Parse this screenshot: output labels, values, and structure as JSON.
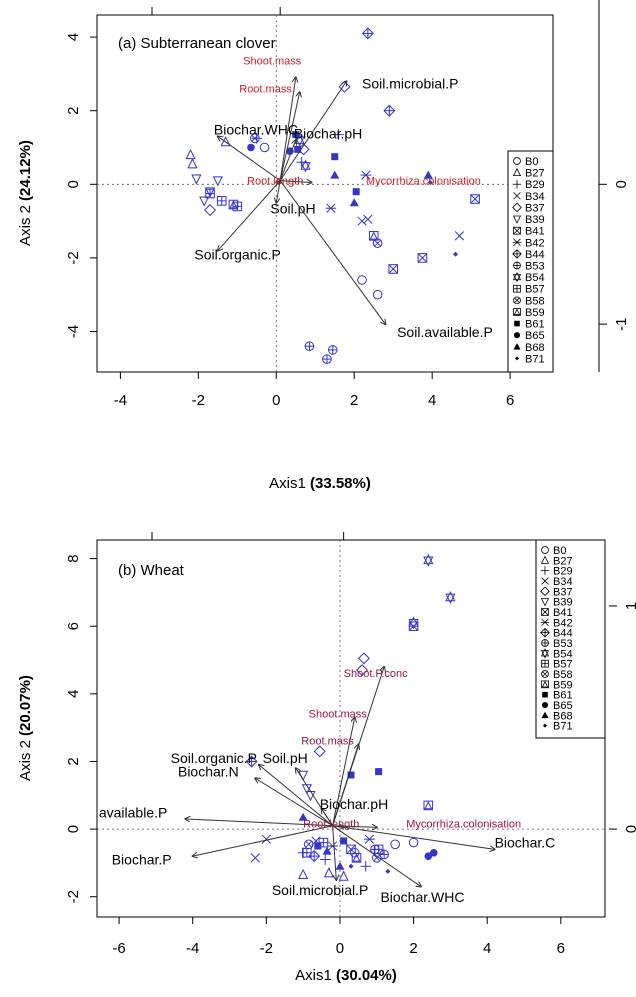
{
  "chart_data": [
    {
      "type": "scatter",
      "title": "(a) Subterranean clover",
      "xlabel": "Axis1",
      "xlabel_pct": "(33.58%)",
      "ylabel": "Axis 2",
      "ylabel_pct": "(24.12%)",
      "xlim": [
        -4.6,
        7.1
      ],
      "ylim": [
        -5.1,
        4.6
      ],
      "xticks": [
        "-4",
        "-2",
        "0",
        "2",
        "4",
        "6"
      ],
      "yticks": [
        "-4",
        "-2",
        "0",
        "2",
        "4"
      ],
      "right_ticks": [
        "0",
        "-1"
      ],
      "legend_position": "right",
      "legend": [
        "B0",
        "B27",
        "B29",
        "B34",
        "B37",
        "B39",
        "B41",
        "B42",
        "B44",
        "B53",
        "B54",
        "B57",
        "B58",
        "B59",
        "B61",
        "B65",
        "B68",
        "B71"
      ],
      "colors": {
        "points": "#3535c8",
        "vector": "#333333",
        "red_label": "#d6202a"
      },
      "origin": [
        0.1,
        0.1
      ],
      "vectors": [
        {
          "label": "Soil.microbial.P",
          "x": 1.8,
          "y": 2.8,
          "color": "black",
          "lx": 2.2,
          "ly": 2.6
        },
        {
          "label": "Shoot.mass",
          "x": 0.5,
          "y": 2.9,
          "color": "red",
          "lx": -0.85,
          "ly": 3.25
        },
        {
          "label": "Root.mass",
          "x": 0.6,
          "y": 2.5,
          "color": "red",
          "lx": -0.95,
          "ly": 2.5
        },
        {
          "label": "Biochar.WHC",
          "x": -1.5,
          "y": 1.3,
          "color": "black",
          "lx": -1.6,
          "ly": 1.35
        },
        {
          "label": "Biochar.pH",
          "x": 0.5,
          "y": 1.2,
          "color": "black",
          "lx": 0.45,
          "ly": 1.25
        },
        {
          "label": "Root.length",
          "x": 0.0,
          "y": 0.05,
          "color": "red",
          "lx": -0.75,
          "ly": 0.0
        },
        {
          "label": "Mycorrhiza.colonisation",
          "x": 0.9,
          "y": 0.05,
          "color": "red",
          "lx": 2.3,
          "ly": 0.0
        },
        {
          "label": "Soil.pH",
          "x": 0.0,
          "y": -0.5,
          "color": "black",
          "lx": -0.15,
          "ly": -0.8
        },
        {
          "label": "Soil.organic.P",
          "x": -1.5,
          "y": -1.8,
          "color": "black",
          "lx": -2.1,
          "ly": -2.05
        },
        {
          "label": "Soil.available.P",
          "x": 2.8,
          "y": -3.8,
          "color": "black",
          "lx": 3.1,
          "ly": -4.15
        }
      ],
      "points": [
        {
          "g": "B0",
          "x": 2.2,
          "y": -2.6
        },
        {
          "g": "B0",
          "x": 2.6,
          "y": -3.0
        },
        {
          "g": "B0",
          "x": -0.3,
          "y": 1.0
        },
        {
          "g": "B27",
          "x": -2.2,
          "y": 0.8
        },
        {
          "g": "B27",
          "x": -2.15,
          "y": 0.55
        },
        {
          "g": "B27",
          "x": -1.3,
          "y": 1.15
        },
        {
          "g": "B29",
          "x": 1.6,
          "y": 1.35
        },
        {
          "g": "B29",
          "x": -0.5,
          "y": 1.25
        },
        {
          "g": "B29",
          "x": 0.65,
          "y": 0.6
        },
        {
          "g": "B34",
          "x": 2.2,
          "y": -1.0
        },
        {
          "g": "B34",
          "x": 2.35,
          "y": -0.95
        },
        {
          "g": "B34",
          "x": 4.7,
          "y": -1.4
        },
        {
          "g": "B37",
          "x": 1.75,
          "y": 2.65
        },
        {
          "g": "B37",
          "x": -1.7,
          "y": -0.7
        },
        {
          "g": "B37",
          "x": 0.7,
          "y": 0.95
        },
        {
          "g": "B39",
          "x": -2.05,
          "y": 0.15
        },
        {
          "g": "B39",
          "x": -1.5,
          "y": 0.1
        },
        {
          "g": "B39",
          "x": -1.7,
          "y": -0.2
        },
        {
          "g": "B39",
          "x": -1.85,
          "y": -0.45
        },
        {
          "g": "B41",
          "x": 5.1,
          "y": -0.4
        },
        {
          "g": "B41",
          "x": 3.0,
          "y": -2.3
        },
        {
          "g": "B41",
          "x": 3.75,
          "y": -2.0
        },
        {
          "g": "B42",
          "x": 2.3,
          "y": 0.25
        },
        {
          "g": "B42",
          "x": 1.4,
          "y": -0.65
        },
        {
          "g": "B44",
          "x": 2.35,
          "y": 4.1
        },
        {
          "g": "B44",
          "x": 2.9,
          "y": 2.0
        },
        {
          "g": "B53",
          "x": 0.85,
          "y": -4.4
        },
        {
          "g": "B53",
          "x": 1.45,
          "y": -4.5
        },
        {
          "g": "B53",
          "x": 1.3,
          "y": -4.75
        },
        {
          "g": "B54",
          "x": 0.6,
          "y": 1.2
        },
        {
          "g": "B54",
          "x": 0.75,
          "y": 0.5
        },
        {
          "g": "B57",
          "x": -1.4,
          "y": -0.45
        },
        {
          "g": "B57",
          "x": -1.0,
          "y": -0.6
        },
        {
          "g": "B57",
          "x": -1.7,
          "y": -0.25
        },
        {
          "g": "B58",
          "x": 2.6,
          "y": -1.6
        },
        {
          "g": "B58",
          "x": -0.55,
          "y": 1.25
        },
        {
          "g": "B59",
          "x": 2.5,
          "y": -1.4
        },
        {
          "g": "B59",
          "x": -1.1,
          "y": -0.55
        },
        {
          "g": "B61",
          "x": 1.5,
          "y": 0.75
        },
        {
          "g": "B61",
          "x": 0.5,
          "y": 1.35
        },
        {
          "g": "B61",
          "x": 2.05,
          "y": -0.2
        },
        {
          "g": "B61",
          "x": 0.55,
          "y": 0.95
        },
        {
          "g": "B65",
          "x": -0.65,
          "y": 1.0
        },
        {
          "g": "B65",
          "x": 0.35,
          "y": 0.9
        },
        {
          "g": "B68",
          "x": 1.5,
          "y": 0.25
        },
        {
          "g": "B68",
          "x": 2.0,
          "y": -0.5
        },
        {
          "g": "B68",
          "x": 3.9,
          "y": 0.25
        },
        {
          "g": "B71",
          "x": 3.95,
          "y": 0.05
        },
        {
          "g": "B71",
          "x": 4.6,
          "y": -1.9
        }
      ]
    },
    {
      "type": "scatter",
      "title": "(b) Wheat",
      "xlabel": "Axis1",
      "xlabel_pct": "(30.04%)",
      "ylabel": "Axis 2",
      "ylabel_pct": "(20.07%)",
      "xlim": [
        -6.6,
        7.2
      ],
      "ylim": [
        -2.6,
        8.55
      ],
      "xticks": [
        "-6",
        "-4",
        "-2",
        "0",
        "2",
        "4",
        "6"
      ],
      "yticks": [
        "-2",
        "0",
        "2",
        "4",
        "6",
        "8"
      ],
      "right_ticks": [
        "1",
        "0"
      ],
      "legend_position": "top-right",
      "legend": [
        "B0",
        "B27",
        "B29",
        "B34",
        "B37",
        "B39",
        "B41",
        "B42",
        "B44",
        "B53",
        "B54",
        "B57",
        "B58",
        "B59",
        "B61",
        "B65",
        "B68",
        "B71"
      ],
      "colors": {
        "points": "#3535c8",
        "vector": "#333333",
        "red_label": "#9b1446"
      },
      "origin": [
        -0.2,
        0.1
      ],
      "vectors": [
        {
          "label": "Shoot.P.conc",
          "x": 1.2,
          "y": 4.8,
          "color": "red",
          "lx": 0.1,
          "ly": 4.5
        },
        {
          "label": "Shoot.mass",
          "x": 0.4,
          "y": 3.3,
          "color": "red",
          "lx": -0.85,
          "ly": 3.3
        },
        {
          "label": "Root.mass",
          "x": 0.5,
          "y": 2.5,
          "color": "red",
          "lx": -1.05,
          "ly": 2.5
        },
        {
          "label": "Soil.organic.P",
          "x": -2.2,
          "y": 1.9,
          "color": "black",
          "lx": -4.6,
          "ly": 1.95
        },
        {
          "label": "Soil.pH",
          "x": -1.2,
          "y": 1.8,
          "color": "black",
          "lx": -2.1,
          "ly": 1.95
        },
        {
          "label": "Biochar.N",
          "x": -2.3,
          "y": 1.5,
          "color": "black",
          "lx": -4.4,
          "ly": 1.55
        },
        {
          "label": "Biochar.pH",
          "x": -0.5,
          "y": 0.6,
          "color": "black",
          "lx": -0.55,
          "ly": 0.6
        },
        {
          "label": "available.P",
          "x": -4.2,
          "y": 0.3,
          "color": "black",
          "lx": -6.55,
          "ly": 0.35
        },
        {
          "label": "Root.length",
          "x": 0.1,
          "y": 0.05,
          "color": "red",
          "lx": -1.0,
          "ly": 0.05
        },
        {
          "label": "Mycorrhiza.colonisation",
          "x": 1.0,
          "y": 0.05,
          "color": "red",
          "lx": 1.8,
          "ly": 0.05
        },
        {
          "label": "Biochar.C",
          "x": 4.2,
          "y": -0.6,
          "color": "black",
          "lx": 4.2,
          "ly": -0.55
        },
        {
          "label": "Biochar.P",
          "x": -4.0,
          "y": -0.8,
          "color": "black",
          "lx": -6.2,
          "ly": -1.05
        },
        {
          "label": "Soil.microbial.P",
          "x": -0.1,
          "y": -1.5,
          "color": "black",
          "lx": -1.85,
          "ly": -1.95
        },
        {
          "label": "Biochar.WHC",
          "x": 2.2,
          "y": -1.7,
          "color": "black",
          "lx": 1.1,
          "ly": -2.15
        }
      ],
      "points": [
        {
          "g": "B0",
          "x": 1.5,
          "y": -0.45
        },
        {
          "g": "B0",
          "x": 2.0,
          "y": -0.4
        },
        {
          "g": "B0",
          "x": 0.4,
          "y": -0.7
        },
        {
          "g": "B27",
          "x": -1.0,
          "y": -1.35
        },
        {
          "g": "B27",
          "x": -0.3,
          "y": -1.3
        },
        {
          "g": "B27",
          "x": 0.1,
          "y": -1.4
        },
        {
          "g": "B29",
          "x": -1.0,
          "y": -0.7
        },
        {
          "g": "B29",
          "x": -0.4,
          "y": -0.9
        },
        {
          "g": "B29",
          "x": 0.7,
          "y": -1.1
        },
        {
          "g": "B34",
          "x": -2.0,
          "y": -0.3
        },
        {
          "g": "B34",
          "x": -2.3,
          "y": -0.85
        },
        {
          "g": "B34",
          "x": -0.65,
          "y": -0.35
        },
        {
          "g": "B37",
          "x": 0.65,
          "y": 5.05
        },
        {
          "g": "B37",
          "x": -0.55,
          "y": 2.3
        },
        {
          "g": "B37",
          "x": 0.6,
          "y": 4.7
        },
        {
          "g": "B39",
          "x": -1.0,
          "y": 1.6
        },
        {
          "g": "B39",
          "x": -0.9,
          "y": 1.2
        },
        {
          "g": "B39",
          "x": -0.8,
          "y": 1.0
        },
        {
          "g": "B41",
          "x": 2.0,
          "y": 6.0
        },
        {
          "g": "B41",
          "x": 0.3,
          "y": -0.6
        },
        {
          "g": "B42",
          "x": 0.8,
          "y": -0.3
        },
        {
          "g": "B42",
          "x": -0.2,
          "y": -0.5
        },
        {
          "g": "B44",
          "x": -2.4,
          "y": 2.0
        },
        {
          "g": "B44",
          "x": -0.7,
          "y": -0.8
        },
        {
          "g": "B53",
          "x": 1.2,
          "y": -0.75
        },
        {
          "g": "B53",
          "x": 0.95,
          "y": -0.6
        },
        {
          "g": "B54",
          "x": 2.4,
          "y": 7.95
        },
        {
          "g": "B54",
          "x": 3.0,
          "y": 6.85
        },
        {
          "g": "B54",
          "x": 2.0,
          "y": 6.1
        },
        {
          "g": "B57",
          "x": -0.9,
          "y": -0.7
        },
        {
          "g": "B57",
          "x": -0.45,
          "y": -0.4
        },
        {
          "g": "B57",
          "x": 1.05,
          "y": -0.6
        },
        {
          "g": "B58",
          "x": 1.0,
          "y": -0.85
        },
        {
          "g": "B58",
          "x": -0.85,
          "y": -0.45
        },
        {
          "g": "B59",
          "x": 2.4,
          "y": 0.7
        },
        {
          "g": "B59",
          "x": 0.45,
          "y": -0.85
        },
        {
          "g": "B61",
          "x": 0.3,
          "y": 1.6
        },
        {
          "g": "B61",
          "x": 1.05,
          "y": 1.7
        },
        {
          "g": "B61",
          "x": -0.6,
          "y": -0.5
        },
        {
          "g": "B61",
          "x": 0.1,
          "y": -0.35
        },
        {
          "g": "B65",
          "x": 2.4,
          "y": -0.8
        },
        {
          "g": "B65",
          "x": 2.55,
          "y": -0.7
        },
        {
          "g": "B68",
          "x": -1.0,
          "y": 0.35
        },
        {
          "g": "B68",
          "x": 0.0,
          "y": -1.1
        },
        {
          "g": "B68",
          "x": -0.35,
          "y": -0.65
        },
        {
          "g": "B71",
          "x": 0.3,
          "y": -1.1
        },
        {
          "g": "B71",
          "x": 1.3,
          "y": -1.25
        }
      ]
    }
  ]
}
